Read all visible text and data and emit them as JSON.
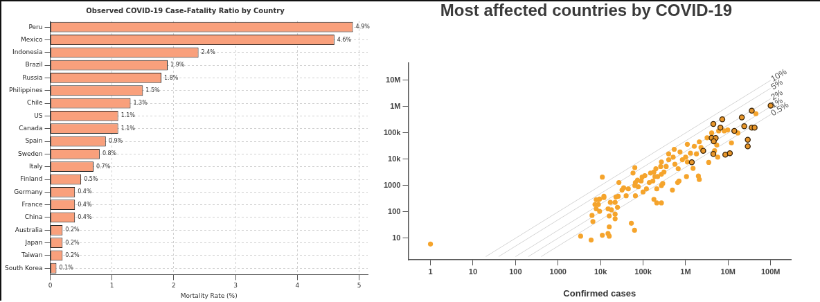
{
  "chart_data": [
    {
      "type": "bar",
      "orientation": "horizontal",
      "title": "Observed COVID-19 Case-Fatality Ratio by Country",
      "xlabel": "Mortality Rate (%)",
      "categories": [
        "Peru",
        "Mexico",
        "Indonesia",
        "Brazil",
        "Russia",
        "Philippines",
        "Chile",
        "US",
        "Canada",
        "Spain",
        "Sweden",
        "Italy",
        "Finland",
        "Germany",
        "France",
        "China",
        "Australia",
        "Japan",
        "Taiwan",
        "South Korea"
      ],
      "values": [
        4.9,
        4.6,
        2.4,
        1.9,
        1.8,
        1.5,
        1.3,
        1.1,
        1.1,
        0.9,
        0.8,
        0.7,
        0.5,
        0.4,
        0.4,
        0.4,
        0.2,
        0.2,
        0.2,
        0.1
      ],
      "value_labels": [
        "4.9%",
        "4.6%",
        "2.4%",
        "1.9%",
        "1.8%",
        "1.5%",
        "1.3%",
        "1.1%",
        "1.1%",
        "0.9%",
        "0.8%",
        "0.7%",
        "0.5%",
        "0.4%",
        "0.4%",
        "0.4%",
        "0.2%",
        "0.2%",
        "0.2%",
        "0.1%"
      ],
      "color": "#f9a07c",
      "xlim": [
        0,
        5.14
      ],
      "xticks": [
        0,
        1,
        2,
        3,
        4,
        5
      ],
      "grid": true,
      "legend": false
    },
    {
      "type": "scatter",
      "title": "Most affected countries by COVID-19",
      "xlabel": "Confirmed cases",
      "log": "xy",
      "grid": false,
      "legend": false,
      "xlim": [
        0.3,
        300000000
      ],
      "ylim": [
        1.5,
        46000000
      ],
      "xticks": [
        1,
        10,
        100,
        1000,
        {
          "value": 10000,
          "label": "10k"
        },
        {
          "value": 100000,
          "label": "100k"
        },
        {
          "value": 1000000,
          "label": "1M"
        },
        {
          "value": 10000000,
          "label": "10M"
        },
        {
          "value": 100000000,
          "label": "100M"
        }
      ],
      "yticks": [
        10,
        100,
        1000,
        {
          "value": 10000,
          "label": "10k"
        },
        {
          "value": 100000,
          "label": "100k"
        },
        {
          "value": 1000000,
          "label": "1M"
        },
        {
          "value": 10000000,
          "label": "10M"
        }
      ],
      "series": [
        {
          "type": "line",
          "name": "10%",
          "marker": "none",
          "color": "#d4d4d4",
          "x": [
            20,
            100000000
          ],
          "values": [
            2,
            10000000
          ]
        },
        {
          "type": "line",
          "name": "5%",
          "marker": "none",
          "color": "#d4d4d4",
          "x": [
            40,
            100000000
          ],
          "values": [
            2,
            5000000
          ]
        },
        {
          "type": "line",
          "name": "2%",
          "marker": "none",
          "color": "#d4d4d4",
          "x": [
            100,
            100000000
          ],
          "values": [
            2,
            2000000
          ]
        },
        {
          "type": "line",
          "name": "1%",
          "marker": "none",
          "color": "#d4d4d4",
          "x": [
            200,
            100000000
          ],
          "values": [
            2,
            1000000
          ]
        },
        {
          "type": "line",
          "name": "0.5%",
          "marker": "none",
          "color": "#d4d4d4",
          "x": [
            400,
            100000000
          ],
          "values": [
            2,
            500000
          ]
        },
        {
          "type": "scatter",
          "marker": "circle",
          "color": "#f5a42c",
          "x": [
            1,
            11000,
            7900,
            9500,
            7400,
            7900,
            9500,
            6300,
            6600,
            3400,
            6000,
            11000,
            8900,
            45000000,
            17000000,
            9800000,
            12000000,
            8100000,
            6000000,
            3200000,
            4100000,
            5400000,
            4800000,
            5700000,
            3500000,
            2100000,
            1600000,
            1100000,
            1300000,
            1800000,
            2300000,
            1000000,
            840000,
            1100000,
            1500000,
            1050000,
            650000,
            700000,
            490000,
            670000,
            560000,
            510000,
            400000,
            400000,
            540000,
            740000,
            270000,
            260000,
            350000,
            310000,
            270000,
            220000,
            200000,
            180000,
            190000,
            150000,
            140000,
            170000,
            210000,
            270000,
            290000,
            110000,
            95000,
            90000,
            74000,
            66000,
            64000,
            58000,
            77000,
            100000,
            120000,
            66000,
            64000,
            45000,
            35000,
            32000,
            40000,
            27000,
            23000,
            26000,
            22000,
            17000,
            15000,
            18000,
            25000,
            22000,
            16000,
            22000,
            12000,
            9000,
            12000,
            53000,
            63000,
            16000,
            16000,
            15000,
            180000,
            210000,
            270000,
            2000000,
            2100000
          ],
          "values": [
            6,
            2100,
            290,
            310,
            190,
            130,
            105,
            74,
            43,
            12,
            8.5,
            13,
            190,
            540000,
            100000,
            130000,
            42000,
            120000,
            120000,
            66000,
            100000,
            35000,
            21000,
            12000,
            7600,
            46000,
            31000,
            37000,
            17000,
            16000,
            28000,
            12000,
            9600,
            7900,
            4500,
            2200,
            1300,
            1500,
            680,
            4400,
            6500,
            12000,
            16000,
            9600,
            24000,
            19000,
            7900,
            5300,
            5300,
            3300,
            2700,
            2200,
            4400,
            3300,
            2200,
            3000,
            1300,
            1500,
            750,
            1000,
            1200,
            2400,
            2100,
            1500,
            1600,
            1300,
            4800,
            3000,
            900,
            570,
            750,
            410,
            1000,
            750,
            820,
            680,
            410,
            1300,
            370,
            390,
            230,
            230,
            130,
            120,
            150,
            82,
            70,
            55,
            390,
            290,
            350,
            37,
            20,
            27,
            12,
            15,
            300,
            220,
            220,
            2300,
            1700
          ]
        },
        {
          "type": "scatter",
          "marker": "circle",
          "color": "#e8962a",
          "x": [
            100000000,
            36000000,
            7300000,
            21000000,
            4500000,
            6600000,
            24000000,
            36000000,
            42000000,
            14000000,
            4100000,
            5100000,
            4600000,
            29000000,
            29000000,
            2600000,
            4500000,
            8600000,
            11000000,
            1400000
          ],
          "values": [
            1100000,
            700000,
            330000,
            390000,
            220000,
            160000,
            180000,
            160000,
            160000,
            120000,
            65000,
            64000,
            48000,
            55000,
            31000,
            21000,
            16000,
            15000,
            17000,
            7700
          ]
        }
      ]
    }
  ]
}
